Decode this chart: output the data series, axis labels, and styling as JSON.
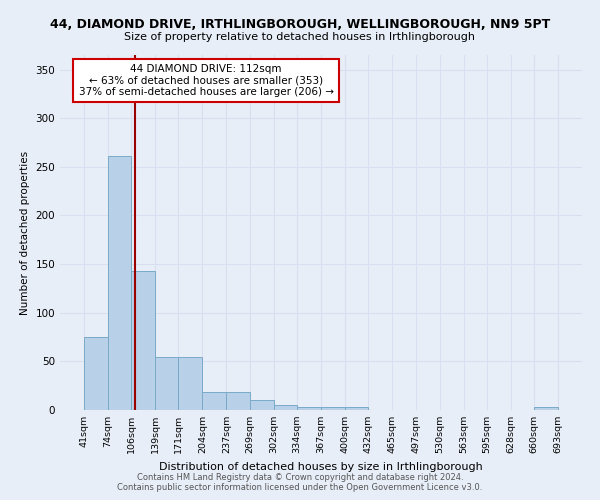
{
  "title": "44, DIAMOND DRIVE, IRTHLINGBOROUGH, WELLINGBOROUGH, NN9 5PT",
  "subtitle": "Size of property relative to detached houses in Irthlingborough",
  "xlabel": "Distribution of detached houses by size in Irthlingborough",
  "ylabel": "Number of detached properties",
  "bar_edges": [
    41,
    74,
    106,
    139,
    171,
    204,
    237,
    269,
    302,
    334,
    367,
    400,
    432,
    465,
    497,
    530,
    563,
    595,
    628,
    660,
    693
  ],
  "bar_heights": [
    75,
    261,
    143,
    54,
    54,
    18,
    18,
    10,
    5,
    3,
    3,
    3,
    0,
    0,
    0,
    0,
    0,
    0,
    0,
    3
  ],
  "bar_color": "#b8d0e8",
  "bar_edge_color": "#7aaac8",
  "vline_x": 112,
  "vline_color": "#990000",
  "annotation_text": "44 DIAMOND DRIVE: 112sqm\n← 63% of detached houses are smaller (353)\n37% of semi-detached houses are larger (206) →",
  "annotation_box_color": "#ffffff",
  "annotation_box_edge": "#cc0000",
  "ylim": [
    0,
    365
  ],
  "yticks": [
    0,
    50,
    100,
    150,
    200,
    250,
    300,
    350
  ],
  "tick_labels": [
    "41sqm",
    "74sqm",
    "106sqm",
    "139sqm",
    "171sqm",
    "204sqm",
    "237sqm",
    "269sqm",
    "302sqm",
    "334sqm",
    "367sqm",
    "400sqm",
    "432sqm",
    "465sqm",
    "497sqm",
    "530sqm",
    "563sqm",
    "595sqm",
    "628sqm",
    "660sqm",
    "693sqm"
  ],
  "background_color": "#e8eef8",
  "grid_color": "#d8dff0",
  "footer_text": "Contains HM Land Registry data © Crown copyright and database right 2024.\nContains public sector information licensed under the Open Government Licence v3.0."
}
